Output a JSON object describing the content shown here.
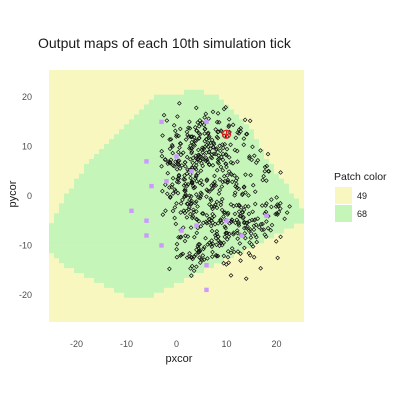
{
  "chart_data": {
    "type": "scatter",
    "title": "Output maps of each 10th simulation tick",
    "xlabel": "pxcor",
    "ylabel": "pycor",
    "xlim": [
      -25.5,
      25.5
    ],
    "ylim": [
      -25.5,
      25.5
    ],
    "x_ticks": [
      -20,
      -10,
      0,
      10,
      20
    ],
    "y_ticks": [
      -20,
      -10,
      0,
      10,
      20
    ],
    "grid": true,
    "legend": {
      "title": "Patch color",
      "position": "right",
      "entries": [
        {
          "label": "49",
          "color": "#f7f7bf"
        },
        {
          "label": "68",
          "color": "#c5f5b8"
        }
      ]
    },
    "green_region_rows": [
      {
        "y": 21,
        "x0": 2,
        "x1": 5
      },
      {
        "y": 20,
        "x0": -4,
        "x1": 8
      },
      {
        "y": 19,
        "x0": -5,
        "x1": 9
      },
      {
        "y": 18,
        "x0": -6,
        "x1": 10
      },
      {
        "y": 17,
        "x0": -7,
        "x1": 11
      },
      {
        "y": 16,
        "x0": -8,
        "x1": 12
      },
      {
        "y": 15,
        "x0": -9,
        "x1": 13
      },
      {
        "y": 14,
        "x0": -10,
        "x1": 14
      },
      {
        "y": 13,
        "x0": -11,
        "x1": 15
      },
      {
        "y": 12,
        "x0": -12,
        "x1": 15
      },
      {
        "y": 11,
        "x0": -13,
        "x1": 16
      },
      {
        "y": 10,
        "x0": -14,
        "x1": 16
      },
      {
        "y": 9,
        "x0": -15,
        "x1": 17
      },
      {
        "y": 8,
        "x0": -16,
        "x1": 17
      },
      {
        "y": 7,
        "x0": -17,
        "x1": 18
      },
      {
        "y": 6,
        "x0": -18,
        "x1": 19
      },
      {
        "y": 5,
        "x0": -18,
        "x1": 19
      },
      {
        "y": 4,
        "x0": -19,
        "x1": 20
      },
      {
        "y": 3,
        "x0": -20,
        "x1": 21
      },
      {
        "y": 2,
        "x0": -20,
        "x1": 22
      },
      {
        "y": 1,
        "x0": -21,
        "x1": 22
      },
      {
        "y": 0,
        "x0": -22,
        "x1": 23
      },
      {
        "y": -1,
        "x0": -22,
        "x1": 24
      },
      {
        "y": -2,
        "x0": -23,
        "x1": 24
      },
      {
        "y": -3,
        "x0": -23,
        "x1": 25
      },
      {
        "y": -4,
        "x0": -24,
        "x1": 25
      },
      {
        "y": -5,
        "x0": -24,
        "x1": 25
      },
      {
        "y": -6,
        "x0": -25,
        "x1": 23
      },
      {
        "y": -7,
        "x0": -25,
        "x1": 21
      },
      {
        "y": -8,
        "x0": -25,
        "x1": 19
      },
      {
        "y": -9,
        "x0": -25,
        "x1": 17
      },
      {
        "y": -10,
        "x0": -25,
        "x1": 15
      },
      {
        "y": -11,
        "x0": -25,
        "x1": 13
      },
      {
        "y": -12,
        "x0": -24,
        "x1": 11
      },
      {
        "y": -13,
        "x0": -23,
        "x1": 9
      },
      {
        "y": -14,
        "x0": -22,
        "x1": 7
      },
      {
        "y": -15,
        "x0": -20,
        "x1": 5
      },
      {
        "y": -16,
        "x0": -18,
        "x1": 3
      },
      {
        "y": -17,
        "x0": -16,
        "x1": 1
      },
      {
        "y": -18,
        "x0": -14,
        "x1": -1
      },
      {
        "y": -19,
        "x0": -12,
        "x1": -3
      },
      {
        "y": -20,
        "x0": -10,
        "x1": -5
      }
    ],
    "violet_points": [
      {
        "x": 6,
        "y": 15
      },
      {
        "x": -6,
        "y": 7
      },
      {
        "x": 0,
        "y": 8
      },
      {
        "x": -5,
        "y": 2
      },
      {
        "x": -9,
        "y": -3
      },
      {
        "x": -6,
        "y": -5
      },
      {
        "x": 1,
        "y": -7
      },
      {
        "x": -3,
        "y": -10
      },
      {
        "x": 10,
        "y": -5
      },
      {
        "x": 13,
        "y": -8
      },
      {
        "x": 6,
        "y": -14
      },
      {
        "x": 6,
        "y": -19
      },
      {
        "x": -3,
        "y": 15
      },
      {
        "x": -6,
        "y": -8
      },
      {
        "x": 3,
        "y": 5
      },
      {
        "x": 18,
        "y": -4
      },
      {
        "x": 4,
        "y": -6
      },
      {
        "x": -2,
        "y": 3
      }
    ],
    "red_markers": [
      {
        "x": 10,
        "y": 12.5
      }
    ]
  }
}
